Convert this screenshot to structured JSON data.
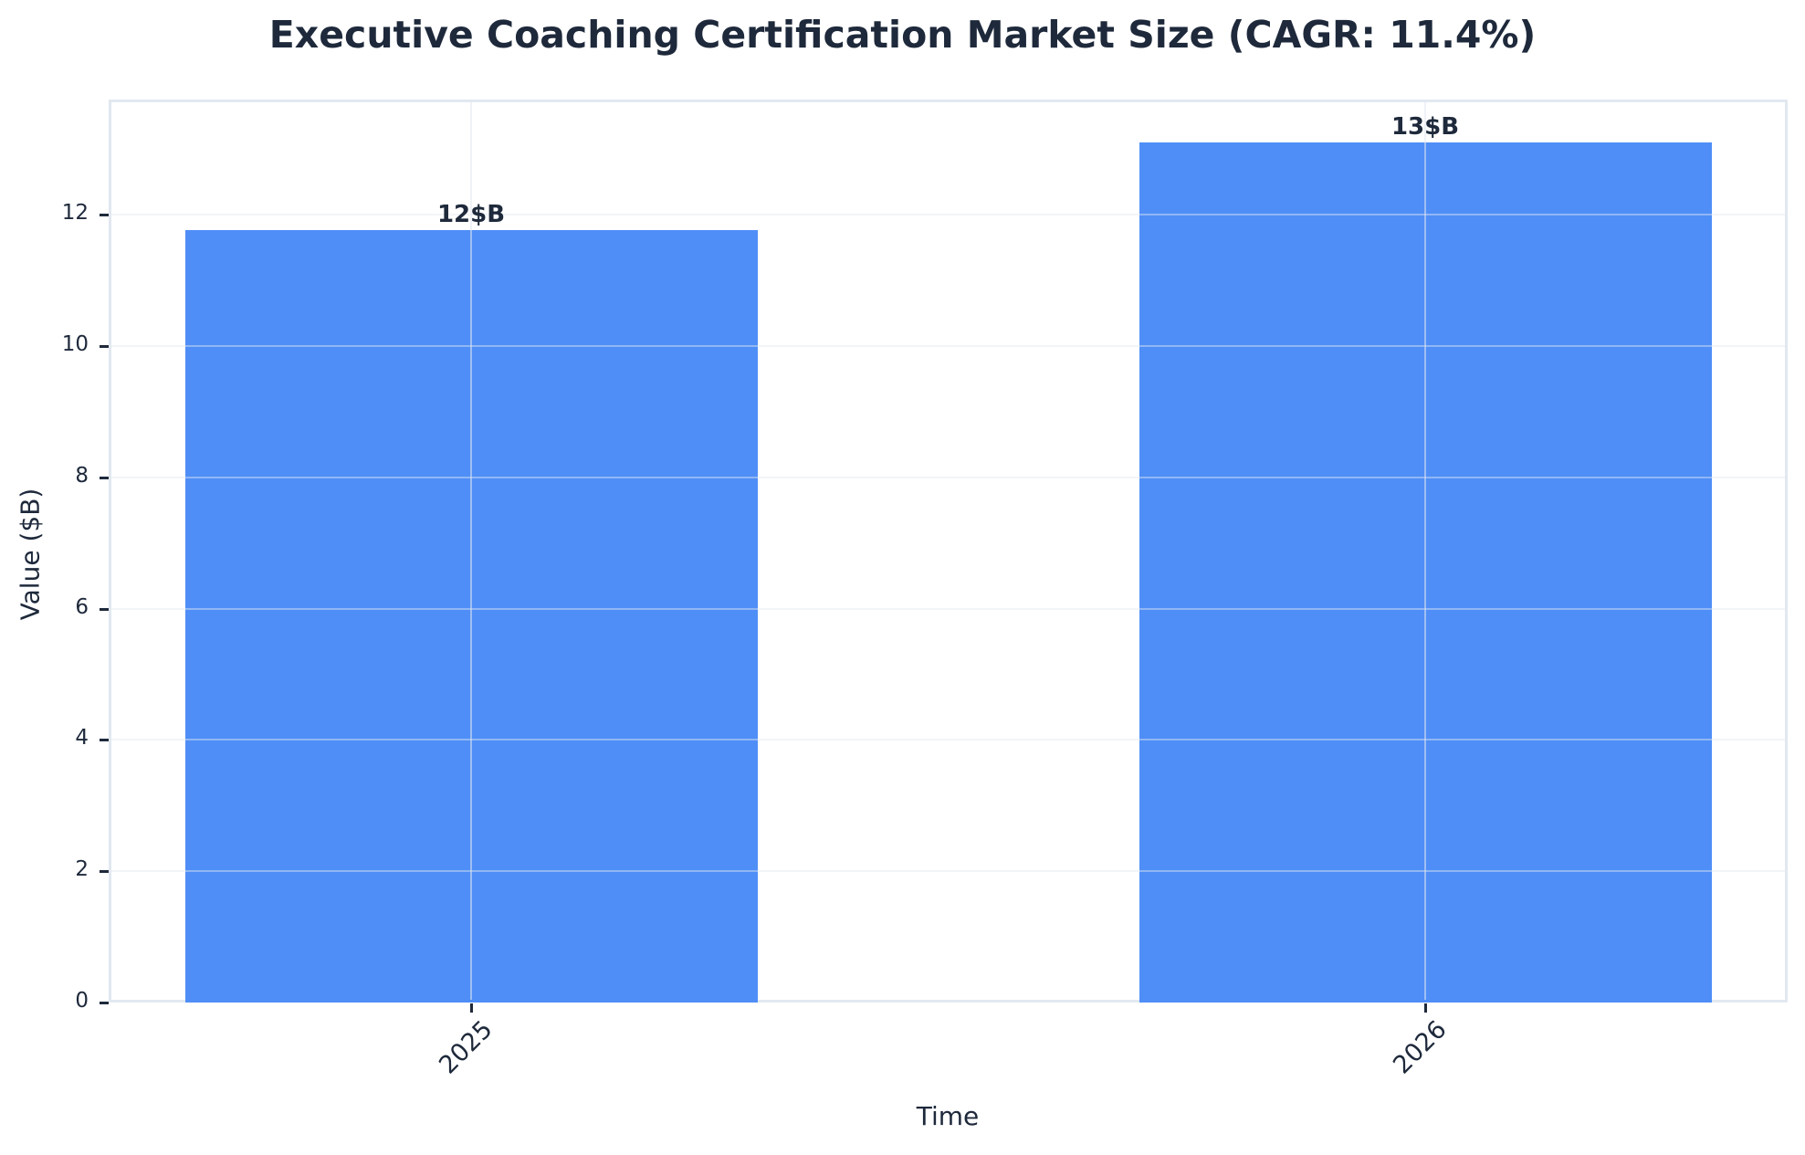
{
  "chart_data": {
    "type": "bar",
    "title": "Executive Coaching Certification Market Size (CAGR: 11.4%)",
    "xlabel": "Time",
    "ylabel": "Value ($B)",
    "categories": [
      "2025",
      "2026"
    ],
    "values": [
      11.76,
      13.1
    ],
    "bar_labels": [
      "12$B",
      "13$B"
    ],
    "yticks": [
      "0",
      "2",
      "4",
      "6",
      "8",
      "10",
      "12"
    ],
    "ylim": [
      0,
      13.76
    ],
    "grid": true,
    "legend": null,
    "cagr": "11.4%",
    "colors": {
      "bar": "#4f8ef7",
      "text": "#1e293b",
      "spine": "#e2e8f0"
    }
  }
}
